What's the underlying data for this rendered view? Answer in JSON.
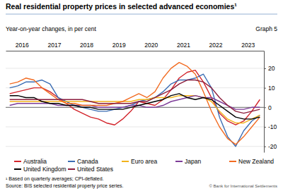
{
  "chart_data": {
    "type": "line",
    "title": "Real residential property prices in selected advanced economies¹",
    "subtitle": "Year-on-year changes, in per cent",
    "graph_label": "Graph 5",
    "footnote": "¹ Based on quarterly averages; CPI-deflated.",
    "source": "Source: BIS selected residential property price series.",
    "copyright": "© Bank for International Settlements",
    "x": [
      2016.125,
      2016.375,
      2016.625,
      2016.875,
      2017.125,
      2017.375,
      2017.625,
      2017.875,
      2018.125,
      2018.375,
      2018.625,
      2018.875,
      2019.125,
      2019.375,
      2019.625,
      2019.875,
      2020.125,
      2020.375,
      2020.625,
      2020.875,
      2021.125,
      2021.375,
      2021.625,
      2021.875,
      2022.125,
      2022.375,
      2022.625,
      2022.875,
      2023.125,
      2023.375,
      2023.625,
      2023.875
    ],
    "xlim": [
      2016,
      2024
    ],
    "xticks": [
      {
        "value": 2016.5,
        "label": "2016"
      },
      {
        "value": 2017.5,
        "label": "2017"
      },
      {
        "value": 2018.5,
        "label": "2018"
      },
      {
        "value": 2019.5,
        "label": "2019"
      },
      {
        "value": 2020.5,
        "label": "2020"
      },
      {
        "value": 2021.5,
        "label": "2021"
      },
      {
        "value": 2022.5,
        "label": "2022"
      },
      {
        "value": 2023.5,
        "label": "2023"
      }
    ],
    "ylim": [
      -23,
      29
    ],
    "yticks": [
      -20,
      -10,
      0,
      10,
      20
    ],
    "grid": true,
    "legend": "bottom",
    "series": [
      {
        "name": "Australia",
        "color": "#d2232a",
        "values": [
          7,
          8,
          9,
          10,
          10,
          8,
          5,
          2,
          -1,
          -3,
          -5,
          -6,
          -8,
          -9,
          -6,
          -2,
          3,
          2,
          1,
          4,
          9,
          15,
          18,
          19,
          13,
          5,
          -3,
          -7,
          -9,
          -7,
          -2,
          4
        ]
      },
      {
        "name": "Canada",
        "color": "#3b6db3",
        "values": [
          10,
          11,
          13,
          13,
          14,
          12,
          5,
          3,
          1,
          0,
          -1,
          -2,
          -2,
          -1,
          0,
          1,
          3,
          4,
          5,
          8,
          12,
          14,
          14,
          15,
          17,
          10,
          -5,
          -15,
          -20,
          -12,
          -7,
          -4
        ]
      },
      {
        "name": "Euro area",
        "color": "#f2b31b",
        "values": [
          3,
          3,
          3,
          3,
          3,
          3,
          3,
          3,
          3,
          3,
          3,
          3,
          3,
          3,
          3,
          3,
          4,
          4,
          5,
          5,
          5,
          6,
          6,
          6,
          5,
          3,
          -2,
          -6,
          -8,
          -8,
          -6,
          -4
        ]
      },
      {
        "name": "Japan",
        "color": "#7d3c98",
        "values": [
          1,
          2,
          2,
          2,
          2,
          2,
          1,
          1,
          1,
          1,
          1,
          0,
          0,
          0,
          0,
          1,
          1,
          0,
          0,
          1,
          3,
          4,
          5,
          6,
          5,
          5,
          3,
          1,
          -1,
          -1,
          0,
          0
        ]
      },
      {
        "name": "New Zealand",
        "color": "#f26b21",
        "values": [
          12,
          13,
          15,
          14,
          10,
          7,
          4,
          2,
          2,
          1,
          1,
          1,
          1,
          2,
          3,
          5,
          7,
          5,
          8,
          15,
          20,
          23,
          21,
          17,
          8,
          -2,
          -10,
          -16,
          -19,
          -15,
          -10,
          -5
        ]
      },
      {
        "name": "United Kingdom",
        "color": "#000000",
        "values": [
          6,
          6,
          5,
          5,
          3,
          2,
          2,
          1,
          1,
          0,
          0,
          -1,
          -1,
          -1,
          -1,
          0,
          1,
          2,
          3,
          4,
          6,
          7,
          5,
          4,
          5,
          4,
          1,
          -2,
          -5,
          -6,
          -6,
          -5
        ]
      },
      {
        "name": "United States",
        "color": "#8c1d3b",
        "values": [
          4,
          4,
          4,
          4,
          4,
          4,
          4,
          4,
          4,
          4,
          3,
          2,
          2,
          2,
          2,
          2,
          3,
          3,
          5,
          7,
          9,
          12,
          14,
          14,
          13,
          10,
          5,
          1,
          -2,
          -3,
          -2,
          -1
        ]
      }
    ]
  }
}
